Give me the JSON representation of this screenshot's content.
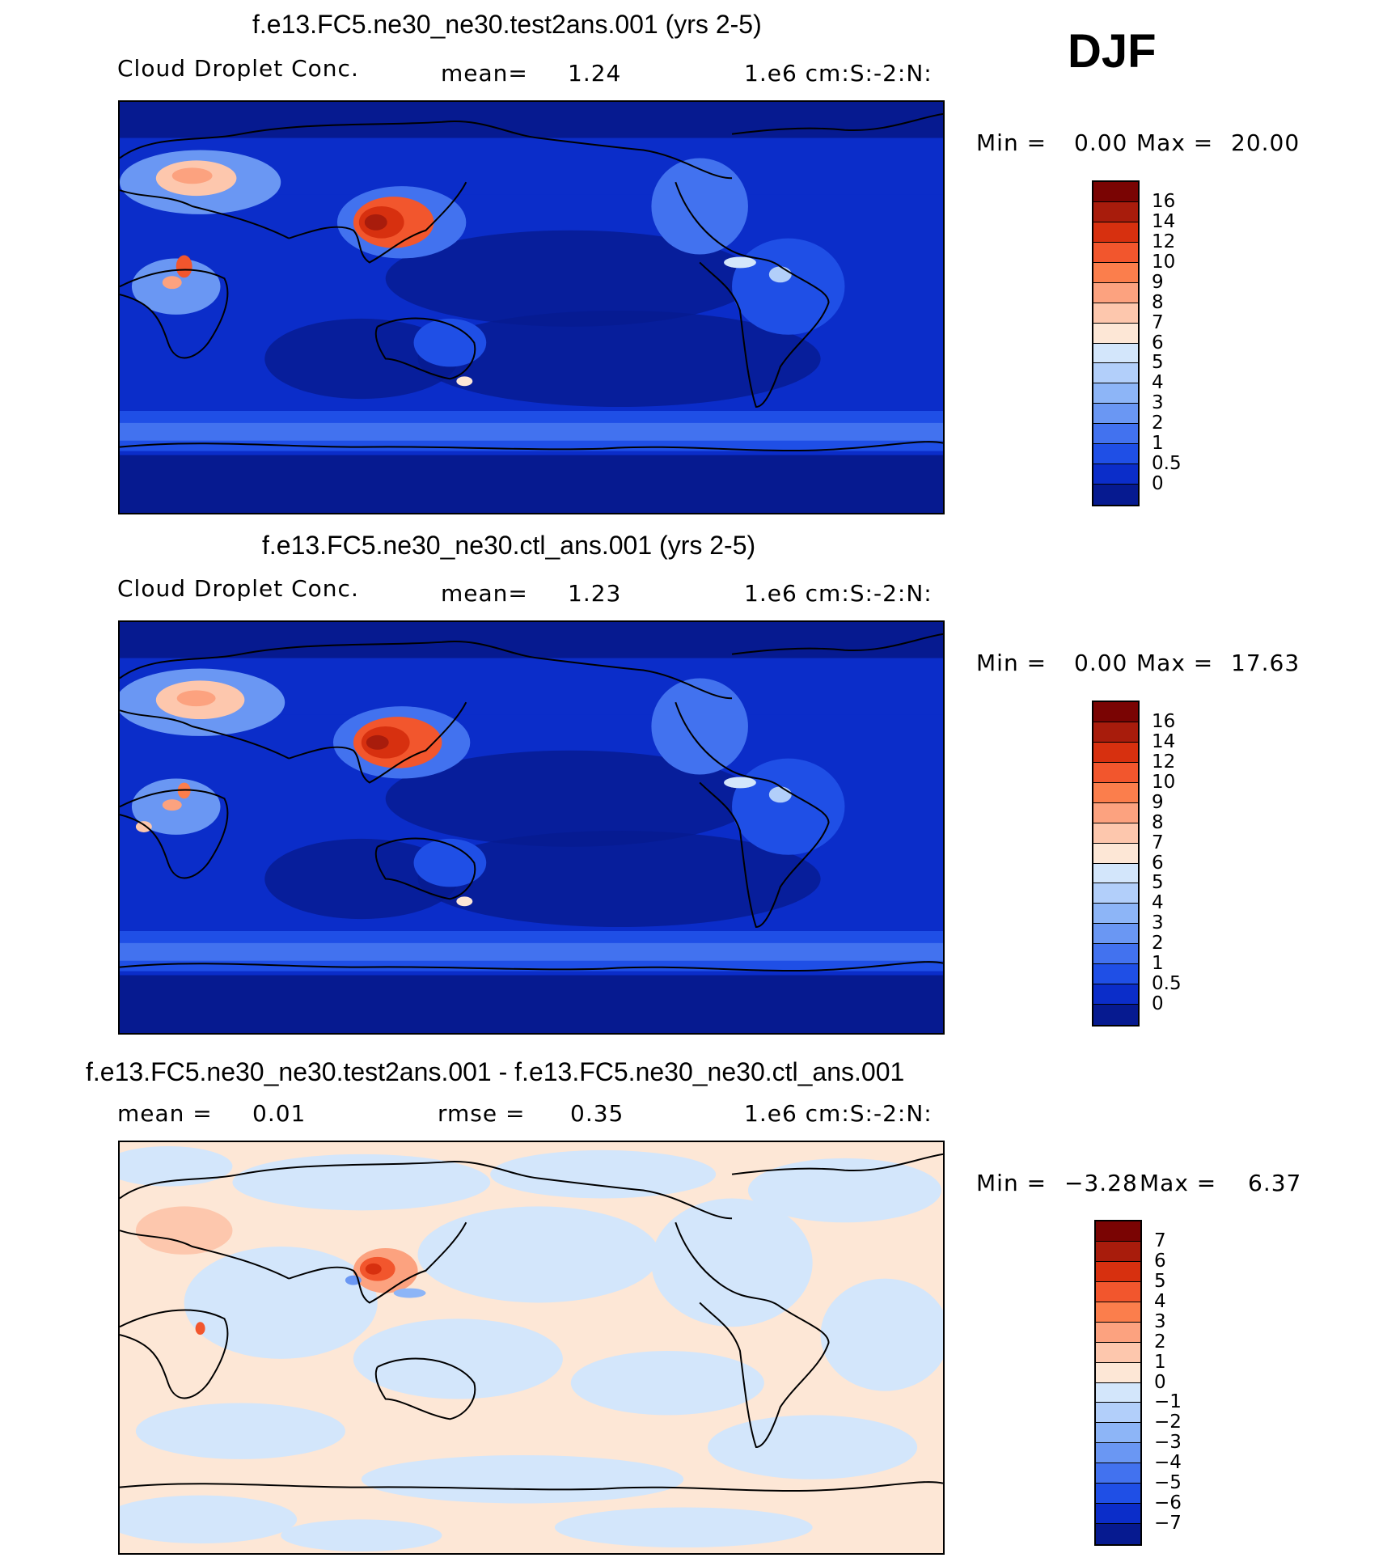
{
  "season": "DJF",
  "panels": [
    {
      "title": "f.e13.FC5.ne30_ne30.test2ans.001 (yrs 2-5)",
      "left_label": "Cloud Droplet Conc.",
      "mid_label": "mean=",
      "mid_value": "1.24",
      "units": "1.e6 cm:S:-2:N:",
      "min_label": "Min =",
      "min_value": "0.00",
      "max_label": "Max =",
      "max_value": "20.00",
      "colorbar_labels": [
        "16",
        "14",
        "12",
        "10",
        "9",
        "8",
        "7",
        "6",
        "5",
        "4",
        "3",
        "2",
        "1",
        "0.5",
        "0"
      ]
    },
    {
      "title": "f.e13.FC5.ne30_ne30.ctl_ans.001 (yrs 2-5)",
      "left_label": "Cloud Droplet Conc.",
      "mid_label": "mean=",
      "mid_value": "1.23",
      "units": "1.e6 cm:S:-2:N:",
      "min_label": "Min =",
      "min_value": "0.00",
      "max_label": "Max =",
      "max_value": "17.63",
      "colorbar_labels": [
        "16",
        "14",
        "12",
        "10",
        "9",
        "8",
        "7",
        "6",
        "5",
        "4",
        "3",
        "2",
        "1",
        "0.5",
        "0"
      ]
    },
    {
      "title": "f.e13.FC5.ne30_ne30.test2ans.001 - f.e13.FC5.ne30_ne30.ctl_ans.001",
      "left_label": "mean =",
      "left_value": "0.01",
      "mid_label": "rmse =",
      "mid_value": "0.35",
      "units": "1.e6 cm:S:-2:N:",
      "min_label": "Min =",
      "min_value": "−3.28",
      "max_label": "Max =",
      "max_value": "6.37",
      "colorbar_labels": [
        "7",
        "6",
        "5",
        "4",
        "3",
        "2",
        "1",
        "0",
        "−1",
        "−2",
        "−3",
        "−4",
        "−5",
        "−6",
        "−7"
      ]
    }
  ],
  "colors": {
    "abs_scale": [
      "#7a0403",
      "#a81c0c",
      "#d7300f",
      "#f2562d",
      "#fb7e4c",
      "#fca27f",
      "#fdc7ad",
      "#fde7d6",
      "#d3e6fb",
      "#b2cffa",
      "#8db5f7",
      "#6a97f3",
      "#4272ef",
      "#1f4fe6",
      "#0b2dc9",
      "#061a90"
    ],
    "diff_scale": [
      "#7a0403",
      "#a81c0c",
      "#d7300f",
      "#f2562d",
      "#fb7e4c",
      "#fca27f",
      "#fdc7ad",
      "#fde7d6",
      "#d3e6fb",
      "#b2cffa",
      "#8db5f7",
      "#6a97f3",
      "#4272ef",
      "#1f4fe6",
      "#0b2dc9",
      "#061a90"
    ],
    "ocean_abs": "#0b2dc9",
    "diff_background": "#fde7d6",
    "coastline": "#000000"
  }
}
